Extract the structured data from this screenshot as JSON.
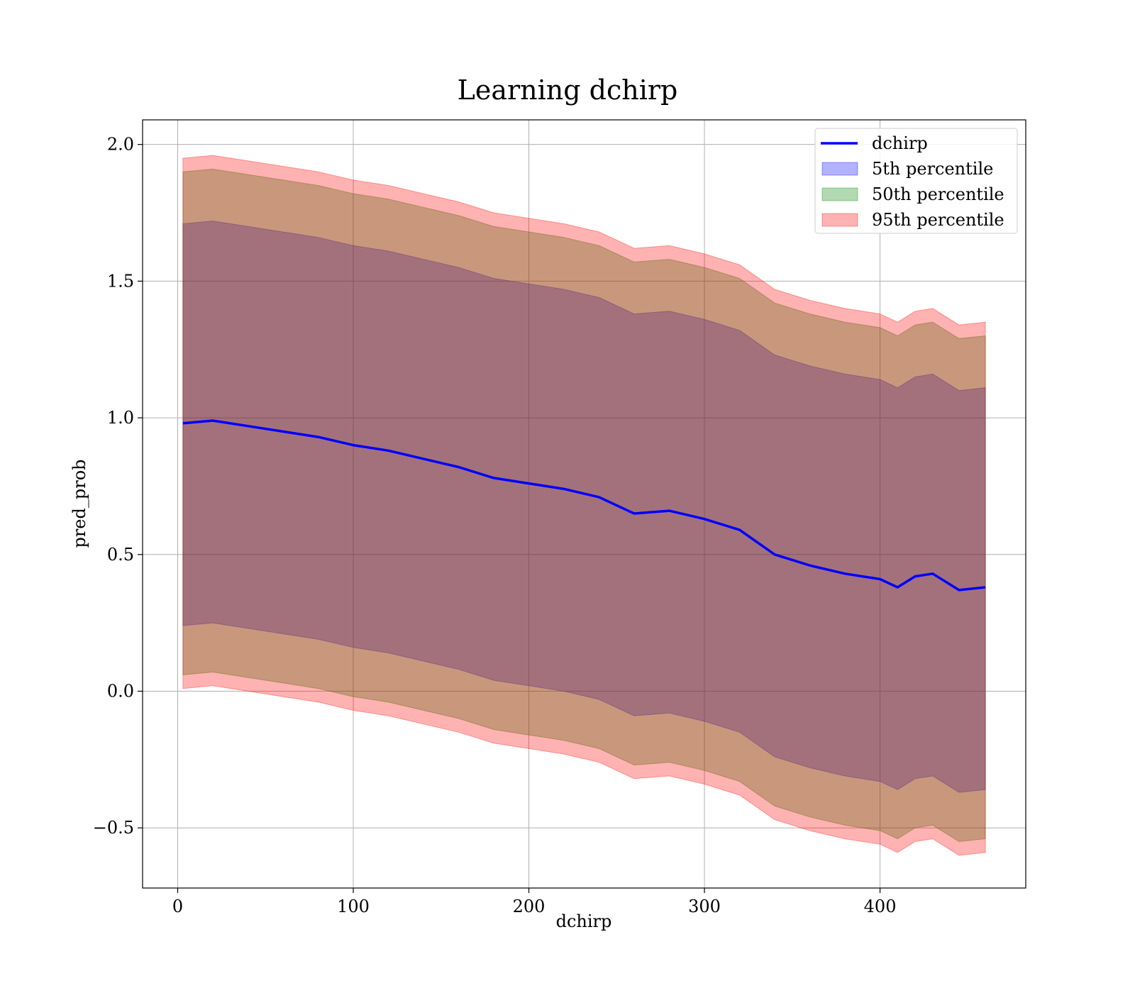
{
  "chart_data": {
    "type": "area",
    "title": "Learning dchirp",
    "xlabel": "dchirp",
    "ylabel": "pred_prob",
    "xlim": [
      -20,
      483
    ],
    "ylim": [
      -0.72,
      2.09
    ],
    "xticks": [
      0,
      100,
      200,
      300,
      400
    ],
    "xtick_labels": [
      "0",
      "100",
      "200",
      "300",
      "400"
    ],
    "yticks": [
      -0.5,
      0.0,
      0.5,
      1.0,
      1.5,
      2.0
    ],
    "ytick_labels": [
      "−0.5",
      "0.0",
      "0.5",
      "1.0",
      "1.5",
      "2.0"
    ],
    "grid": true,
    "legend_position": "top-right",
    "x": [
      3,
      20,
      40,
      60,
      80,
      100,
      120,
      140,
      160,
      180,
      200,
      220,
      240,
      260,
      280,
      300,
      320,
      340,
      360,
      380,
      400,
      410,
      420,
      430,
      445,
      460
    ],
    "series": [
      {
        "name": "dchirp",
        "kind": "line",
        "color": "#0000ff",
        "values": [
          0.98,
          0.99,
          0.97,
          0.95,
          0.93,
          0.9,
          0.88,
          0.85,
          0.82,
          0.78,
          0.76,
          0.74,
          0.71,
          0.65,
          0.66,
          0.63,
          0.59,
          0.5,
          0.46,
          0.43,
          0.41,
          0.38,
          0.42,
          0.43,
          0.37,
          0.38
        ]
      },
      {
        "name": "5th percentile",
        "kind": "band",
        "color": "#0000ff",
        "lower": [
          0.24,
          0.25,
          0.23,
          0.21,
          0.19,
          0.16,
          0.14,
          0.11,
          0.08,
          0.04,
          0.02,
          0.0,
          -0.03,
          -0.09,
          -0.08,
          -0.11,
          -0.15,
          -0.24,
          -0.28,
          -0.31,
          -0.33,
          -0.36,
          -0.32,
          -0.31,
          -0.37,
          -0.36
        ],
        "upper": [
          1.71,
          1.72,
          1.7,
          1.68,
          1.66,
          1.63,
          1.61,
          1.58,
          1.55,
          1.51,
          1.49,
          1.47,
          1.44,
          1.38,
          1.39,
          1.36,
          1.32,
          1.23,
          1.19,
          1.16,
          1.14,
          1.11,
          1.15,
          1.16,
          1.1,
          1.11
        ]
      },
      {
        "name": "50th percentile",
        "kind": "band",
        "color": "#008000",
        "lower": [
          0.06,
          0.07,
          0.05,
          0.03,
          0.01,
          -0.02,
          -0.04,
          -0.07,
          -0.1,
          -0.14,
          -0.16,
          -0.18,
          -0.21,
          -0.27,
          -0.26,
          -0.29,
          -0.33,
          -0.42,
          -0.46,
          -0.49,
          -0.51,
          -0.54,
          -0.5,
          -0.49,
          -0.55,
          -0.54
        ],
        "upper": [
          1.9,
          1.91,
          1.89,
          1.87,
          1.85,
          1.82,
          1.8,
          1.77,
          1.74,
          1.7,
          1.68,
          1.66,
          1.63,
          1.57,
          1.58,
          1.55,
          1.51,
          1.42,
          1.38,
          1.35,
          1.33,
          1.3,
          1.34,
          1.35,
          1.29,
          1.3
        ]
      },
      {
        "name": "95th percentile",
        "kind": "band",
        "color": "#ff0000",
        "lower": [
          0.01,
          0.02,
          0.0,
          -0.02,
          -0.04,
          -0.07,
          -0.09,
          -0.12,
          -0.15,
          -0.19,
          -0.21,
          -0.23,
          -0.26,
          -0.32,
          -0.31,
          -0.34,
          -0.38,
          -0.47,
          -0.51,
          -0.54,
          -0.56,
          -0.59,
          -0.55,
          -0.54,
          -0.6,
          -0.59
        ],
        "upper": [
          1.95,
          1.96,
          1.94,
          1.92,
          1.9,
          1.87,
          1.85,
          1.82,
          1.79,
          1.75,
          1.73,
          1.71,
          1.68,
          1.62,
          1.63,
          1.6,
          1.56,
          1.47,
          1.43,
          1.4,
          1.38,
          1.35,
          1.39,
          1.4,
          1.34,
          1.35
        ]
      }
    ]
  }
}
